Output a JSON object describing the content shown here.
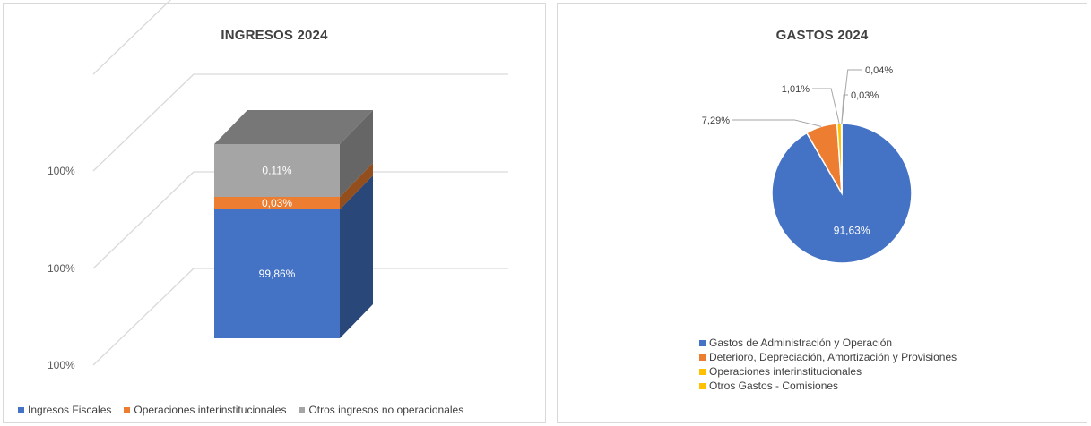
{
  "colors": {
    "blue": "#4472c4",
    "orange": "#ed7d31",
    "gray": "#a5a5a5",
    "yellow": "#ffc000",
    "gridline": "#d9d9d9",
    "text": "#404040"
  },
  "chart_data": [
    {
      "type": "bar",
      "variant": "3d-stacked-100",
      "title": "INGRESOS 2024",
      "ytick_labels": [
        "100%",
        "100%",
        "100%"
      ],
      "grid": true,
      "legend_position": "bottom",
      "categories": [
        ""
      ],
      "series": [
        {
          "name": "Ingresos Fiscales",
          "values": [
            99.86
          ],
          "label": "99,86%",
          "color": "#4472c4"
        },
        {
          "name": "Operaciones interinstitucionales",
          "values": [
            0.03
          ],
          "label": "0,03%",
          "color": "#ed7d31"
        },
        {
          "name": "Otros ingresos no operacionales",
          "values": [
            0.11
          ],
          "label": "0,11%",
          "color": "#a5a5a5"
        }
      ]
    },
    {
      "type": "pie",
      "title": "GASTOS 2024",
      "legend_position": "bottom",
      "slices": [
        {
          "name": "Gastos de Administración y Operación",
          "value": 91.63,
          "label": "91,63%",
          "color": "#4472c4"
        },
        {
          "name": "Deterioro, Depreciación, Amortización y Provisiones",
          "value": 7.29,
          "label": "7,29%",
          "color": "#ed7d31"
        },
        {
          "name": "Operaciones interinstitucionales",
          "value": 1.01,
          "label": "1,01%",
          "color": "#ffc000"
        },
        {
          "name": "Otros Gastos - Comisiones",
          "value": 0.04,
          "label": "0,04%",
          "color": "#ffc000"
        },
        {
          "name": "",
          "value": 0.03,
          "label": "0,03%",
          "color": "#ffc000"
        }
      ]
    }
  ]
}
